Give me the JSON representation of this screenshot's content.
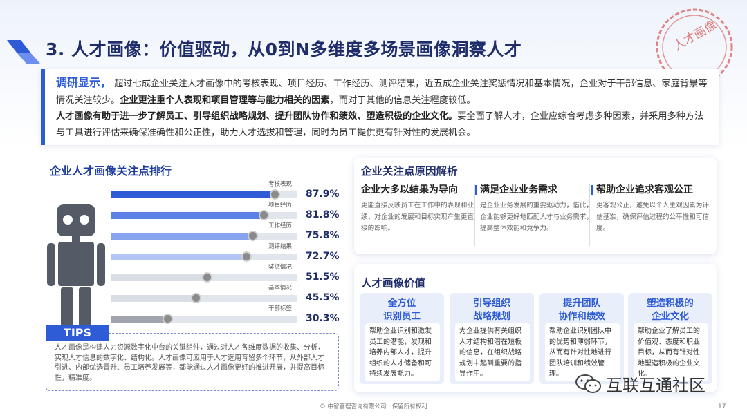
{
  "header": {
    "title": "3. 人才画像：价值驱动，从0到N多维度多场景画像洞察人才",
    "stamp_text": "人才画像"
  },
  "intro": {
    "lead": "调研显示，",
    "p1": "超过七成企业关注人才画像中的考核表现、项目经历、工作经历、测评结果，近五成企业关注奖惩情况和基本情况，企业对于干部信息、家庭背景等情况关注较少。",
    "p1_bold": "企业更注重个人表现和项目管理等与能力相关的因素",
    "p1_end": "，而对于其他的信息关注程度较低。",
    "p2_bold": "人才画像有助于进一步了解员工、引导组织战略规划、提升团队协作和绩效、塑造积极的企业文化。",
    "p2": "要全面了解人才，企业应综合考虑多种因素，并采用多种方法与工具进行评估来确保准确性和公正性，助力人才选拔和管理，同时为员工提供更有针对性的发展机会。"
  },
  "ranking": {
    "title": "企业人才画像关注点排行",
    "colors": [
      "#2e5bd6",
      "#5b80e6",
      "#86a3ee",
      "#b3c5f5",
      "#d9dde6",
      "#d9dde6",
      "#a0a4ad"
    ],
    "items": [
      {
        "label": "考核表现",
        "value": 87.9,
        "value_text": "87.9%"
      },
      {
        "label": "项目经历",
        "value": 81.8,
        "value_text": "81.8%"
      },
      {
        "label": "工作经历",
        "value": 75.8,
        "value_text": "75.8%"
      },
      {
        "label": "测评结果",
        "value": 72.7,
        "value_text": "72.7%"
      },
      {
        "label": "奖惩情况",
        "value": 51.5,
        "value_text": "51.5%"
      },
      {
        "label": "基本情况",
        "value": 45.5,
        "value_text": "45.5%"
      },
      {
        "label": "干部标签",
        "value": 30.3,
        "value_text": "30.3%"
      }
    ]
  },
  "tips": {
    "tag": "TIPS",
    "text": "人才画像是构建人力资源数字化中台的关键组件，通过对人才各维度数据的收集、分析，实现人才信息的数字化、结构化。人才画像可应用于人才选用育留多个环节，从外部人才引进、内部优选晋升、员工培养发展等，都能通过人才画像更好的推进开展，并提高目标性，精准度。"
  },
  "reasons": {
    "title": "企业关注点原因解析",
    "items": [
      {
        "head": "企业大多以结果为导向",
        "body": "更能直接反映员工在工作中的表现和业绩，对企业的发展和目标实现产生更直接的影响。"
      },
      {
        "head": "满足企业业务需求",
        "body": "是企业业务发展的重要驱动力，借此，企业能够更好地匹配人才与业务需求，提高整体效能和竞争力。"
      },
      {
        "head": "帮助企业追求客观公正",
        "body": "更客观公正，避免以个人主观因素为评估基准，确保评估过程的公平性和可信度。"
      }
    ]
  },
  "values": {
    "title": "人才画像价值",
    "cards": [
      {
        "head1": "全方位",
        "head2": "识别员工",
        "body": "帮助企业识别和激发员工的潜能，发现和培养内部人才，提升组织的人才储备和可持续发展能力。"
      },
      {
        "head1": "引导组织",
        "head2": "战略规划",
        "body": "为企业提供有关组织人才结构和潜在短板的信息，在组织战略规划中起到重要的指导作用。"
      },
      {
        "head1": "提升团队",
        "head2": "协作和绩效",
        "body": "帮助企业识别团队中的优势和薄弱环节，从而有针对性地进行团队培训和绩效管理。"
      },
      {
        "head1": "塑造积极的",
        "head2": "企业文化",
        "body": "帮助企业了解员工的价值观、态度和职业目标，从而有针对性地塑造积极的企业文化。"
      }
    ]
  },
  "footer": {
    "text": "© 中智管理咨询有限公司 | 保留所有权利",
    "page": "17",
    "watermark": "互联互通社区"
  }
}
